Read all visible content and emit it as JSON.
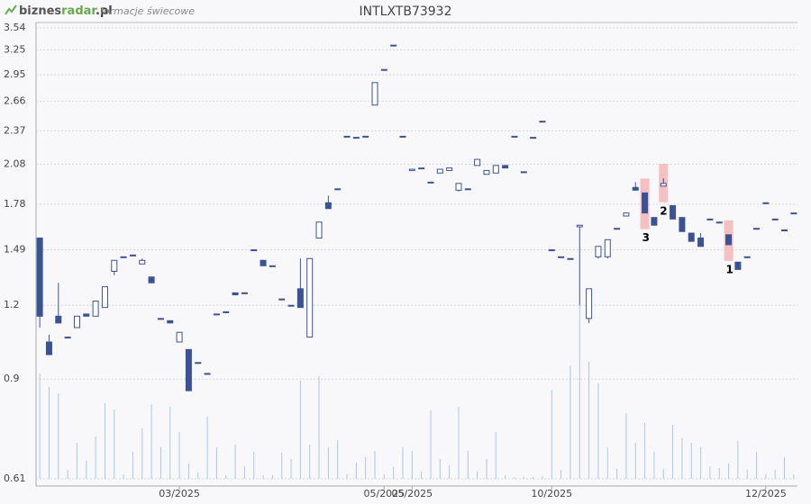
{
  "header": {
    "logo_main": "biznes",
    "logo_accent": "radar",
    "logo_suffix": ".pl",
    "subtitle": "formacje świecowe"
  },
  "chart_data": {
    "type": "candlestick",
    "title": "INTLXTB73932",
    "log_scale": true,
    "ylim": [
      0.61,
      3.54
    ],
    "yticks": [
      0.61,
      0.9,
      1.2,
      1.49,
      1.78,
      2.08,
      2.37,
      2.66,
      2.95,
      3.25,
      3.54
    ],
    "xlim": [
      -0.4,
      81.4
    ],
    "xticks": [
      {
        "value": 15,
        "label": "03/2025"
      },
      {
        "value": 37,
        "label": "05/2025"
      },
      {
        "value": 40,
        "label": "05/2025"
      },
      {
        "value": 55,
        "label": "10/2025"
      },
      {
        "value": 78,
        "label": "12/2025"
      }
    ],
    "grid": true,
    "up_color": "#ffffff",
    "down_color": "#3b5394",
    "edge_color": "#3b5394",
    "volume_color": "#a9c8e8",
    "highlight_color": "#f4b6b6",
    "x": [
      0,
      1,
      2,
      3,
      4,
      5,
      6,
      7,
      8,
      9,
      10,
      11,
      12,
      13,
      14,
      15,
      16,
      17,
      18,
      19,
      20,
      21,
      22,
      23,
      24,
      25,
      26,
      27,
      28,
      29,
      30,
      31,
      32,
      33,
      34,
      35,
      36,
      37,
      38,
      39,
      40,
      41,
      42,
      43,
      44,
      45,
      46,
      47,
      48,
      49,
      50,
      51,
      52,
      53,
      54,
      55,
      56,
      57,
      58,
      59,
      60,
      61,
      62,
      63,
      64,
      65,
      66,
      67,
      68,
      69,
      70,
      71,
      72,
      73,
      74,
      75,
      76,
      77,
      78,
      79,
      80,
      81
    ],
    "open": [
      1.56,
      1.04,
      1.15,
      1.06,
      1.1,
      1.16,
      1.15,
      1.19,
      1.37,
      1.45,
      1.46,
      1.41,
      1.34,
      1.14,
      1.13,
      1.04,
      1.01,
      0.96,
      0.92,
      1.16,
      1.17,
      1.26,
      1.26,
      1.49,
      1.43,
      1.4,
      1.23,
      1.2,
      1.28,
      1.06,
      1.56,
      1.79,
      1.89,
      2.32,
      2.31,
      2.32,
      2.62,
      3.01,
      3.31,
      2.32,
      2.03,
      2.05,
      1.94,
      2.01,
      2.03,
      1.88,
      1.89,
      2.07,
      2.0,
      2.01,
      2.07,
      2.32,
      2.02,
      2.31,
      2.46,
      1.49,
      1.45,
      1.44,
      1.63,
      1.14,
      1.45,
      1.45,
      1.62,
      1.7,
      1.9,
      1.86,
      1.69,
      1.91,
      1.77,
      1.69,
      1.59,
      1.56,
      1.68,
      1.66,
      1.58,
      1.42,
      1.45,
      1.62,
      1.79,
      1.68,
      1.61,
      1.72
    ],
    "high": [
      1.56,
      1.07,
      1.31,
      1.06,
      1.15,
      1.16,
      1.22,
      1.29,
      1.43,
      1.45,
      1.46,
      1.44,
      1.34,
      1.14,
      1.13,
      1.08,
      1.01,
      0.96,
      0.92,
      1.16,
      1.17,
      1.26,
      1.26,
      1.49,
      1.43,
      1.4,
      1.23,
      1.2,
      1.44,
      1.44,
      1.66,
      1.84,
      1.89,
      2.32,
      2.31,
      2.32,
      2.86,
      3.01,
      3.31,
      2.32,
      2.04,
      2.05,
      1.94,
      2.04,
      2.05,
      1.93,
      1.89,
      2.12,
      2.03,
      2.07,
      2.07,
      2.32,
      2.02,
      2.31,
      2.46,
      1.49,
      1.45,
      1.44,
      1.64,
      1.28,
      1.51,
      1.55,
      1.62,
      1.72,
      1.94,
      1.86,
      1.69,
      1.97,
      1.77,
      1.69,
      1.59,
      1.59,
      1.68,
      1.66,
      1.58,
      1.42,
      1.45,
      1.62,
      1.79,
      1.68,
      1.61,
      1.72
    ],
    "low": [
      1.1,
      0.99,
      1.12,
      1.06,
      1.1,
      1.15,
      1.15,
      1.19,
      1.35,
      1.45,
      1.46,
      1.41,
      1.31,
      1.14,
      1.12,
      1.04,
      0.86,
      0.96,
      0.92,
      1.16,
      1.17,
      1.25,
      1.26,
      1.49,
      1.4,
      1.4,
      1.23,
      1.2,
      1.19,
      1.06,
      1.56,
      1.75,
      1.89,
      2.32,
      2.31,
      2.32,
      2.62,
      3.01,
      3.31,
      2.32,
      2.03,
      2.05,
      1.94,
      2.01,
      2.03,
      1.87,
      1.89,
      2.07,
      2.0,
      2.01,
      2.05,
      2.32,
      2.02,
      2.31,
      2.46,
      1.49,
      1.45,
      1.44,
      1.2,
      1.12,
      1.44,
      1.44,
      1.62,
      1.7,
      1.88,
      1.72,
      1.64,
      1.91,
      1.68,
      1.6,
      1.54,
      1.51,
      1.68,
      1.66,
      1.52,
      1.38,
      1.45,
      1.62,
      1.79,
      1.68,
      1.61,
      1.72
    ],
    "close": [
      1.15,
      0.99,
      1.12,
      1.06,
      1.15,
      1.15,
      1.22,
      1.29,
      1.43,
      1.45,
      1.46,
      1.43,
      1.31,
      1.14,
      1.12,
      1.08,
      0.86,
      0.96,
      0.92,
      1.16,
      1.17,
      1.25,
      1.26,
      1.49,
      1.4,
      1.4,
      1.23,
      1.2,
      1.19,
      1.44,
      1.66,
      1.75,
      1.89,
      2.32,
      2.31,
      2.32,
      2.86,
      3.01,
      3.31,
      2.32,
      2.04,
      2.05,
      1.94,
      2.04,
      2.05,
      1.93,
      1.89,
      2.12,
      2.03,
      2.07,
      2.05,
      2.32,
      2.02,
      2.31,
      2.46,
      1.49,
      1.45,
      1.44,
      1.64,
      1.28,
      1.51,
      1.55,
      1.62,
      1.72,
      1.88,
      1.72,
      1.64,
      1.93,
      1.68,
      1.6,
      1.54,
      1.51,
      1.68,
      1.66,
      1.52,
      1.38,
      1.45,
      1.62,
      1.79,
      1.68,
      1.61,
      1.72
    ],
    "volume": [
      117,
      102,
      95,
      10,
      40,
      20,
      47,
      84,
      77,
      5,
      30,
      56,
      83,
      35,
      80,
      52,
      17,
      7,
      69,
      35,
      4,
      38,
      14,
      30,
      4,
      4,
      29,
      22,
      109,
      38,
      114,
      35,
      43,
      5,
      18,
      24,
      31,
      5,
      13,
      35,
      31,
      8,
      76,
      22,
      15,
      80,
      31,
      8,
      22,
      52,
      4,
      2,
      2,
      2,
      3,
      99,
      10,
      126,
      193,
      130,
      106,
      35,
      11,
      73,
      40,
      62,
      30,
      11,
      60,
      45,
      40,
      35,
      14,
      12,
      17,
      42,
      10,
      30,
      5,
      10,
      24,
      5
    ],
    "patterns": [
      {
        "x": 74,
        "label": "1"
      },
      {
        "x": 67,
        "label": "2"
      },
      {
        "x": 65,
        "label": "3"
      }
    ]
  }
}
